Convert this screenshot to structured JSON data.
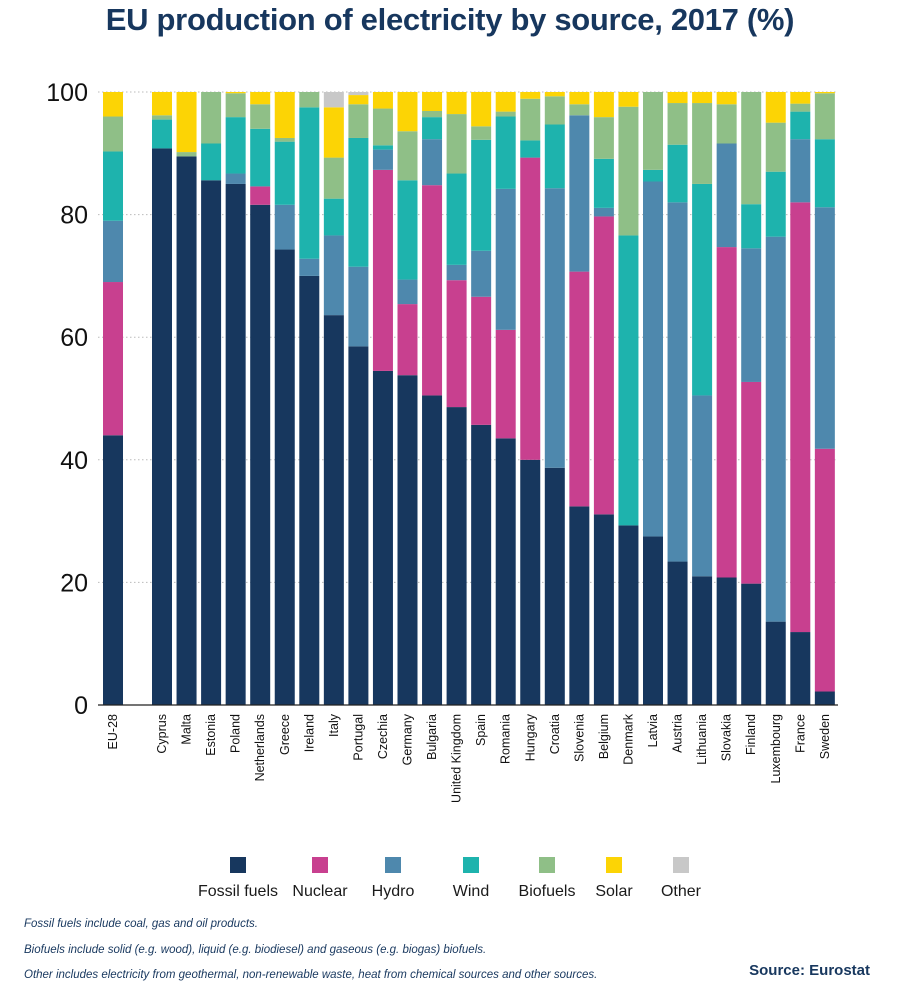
{
  "chart_data": {
    "type": "bar",
    "stacked": true,
    "title": "EU production of electricity by source, 2017 (%)",
    "ylim": [
      0,
      100
    ],
    "yticks": [
      0,
      20,
      40,
      60,
      80,
      100
    ],
    "grid": "horizontal dotted",
    "legend_position": "bottom",
    "series": [
      {
        "name": "Fossil fuels",
        "color": "#17375e"
      },
      {
        "name": "Nuclear",
        "color": "#c8408f"
      },
      {
        "name": "Hydro",
        "color": "#4e88ad"
      },
      {
        "name": "Wind",
        "color": "#1eb3ad"
      },
      {
        "name": "Biofuels",
        "color": "#8fbf87"
      },
      {
        "name": "Solar",
        "color": "#fcd405"
      },
      {
        "name": "Other",
        "color": "#c8c8c8"
      }
    ],
    "categories": [
      "EU-28",
      "Cyprus",
      "Malta",
      "Estonia",
      "Poland",
      "Netherlands",
      "Greece",
      "Ireland",
      "Italy",
      "Portugal",
      "Czechia",
      "Germany",
      "Bulgaria",
      "United Kingdom",
      "Spain",
      "Romania",
      "Hungary",
      "Croatia",
      "Slovenia",
      "Belgium",
      "Denmark",
      "Latvia",
      "Austria",
      "Lithuania",
      "Slovakia",
      "Finland",
      "Luxembourg",
      "France",
      "Sweden"
    ],
    "values": [
      [
        44.0,
        25.0,
        10.0,
        11.3,
        5.7,
        4.0,
        0.0
      ],
      [
        90.8,
        0.0,
        0.0,
        4.7,
        0.7,
        3.8,
        0.0
      ],
      [
        89.5,
        0.0,
        0.0,
        0.0,
        0.7,
        9.8,
        0.0
      ],
      [
        85.6,
        0.0,
        0.0,
        6.0,
        8.4,
        0.0,
        0.0
      ],
      [
        85.0,
        0.0,
        1.7,
        9.2,
        3.9,
        0.2,
        0.0
      ],
      [
        81.6,
        3.0,
        0.0,
        9.4,
        4.0,
        2.0,
        0.0
      ],
      [
        74.3,
        0.0,
        7.3,
        10.3,
        0.6,
        7.5,
        0.0
      ],
      [
        70.0,
        0.0,
        2.8,
        24.7,
        2.5,
        0.0,
        0.0
      ],
      [
        63.6,
        0.0,
        13.0,
        6.0,
        6.7,
        8.2,
        2.5
      ],
      [
        58.5,
        0.0,
        13.0,
        21.0,
        5.5,
        1.5,
        0.5
      ],
      [
        54.5,
        32.8,
        3.3,
        0.7,
        6.0,
        2.7,
        0.0
      ],
      [
        53.8,
        11.6,
        4.0,
        16.2,
        8.0,
        6.4,
        0.0
      ],
      [
        50.5,
        34.3,
        7.5,
        3.6,
        1.0,
        3.1,
        0.0
      ],
      [
        48.6,
        20.7,
        2.5,
        14.9,
        9.7,
        3.6,
        0.0
      ],
      [
        45.7,
        20.9,
        7.5,
        18.1,
        2.2,
        5.6,
        0.0
      ],
      [
        43.5,
        17.7,
        23.0,
        11.8,
        0.8,
        3.2,
        0.0
      ],
      [
        40.0,
        49.3,
        0.0,
        2.8,
        6.8,
        1.1,
        0.0
      ],
      [
        38.7,
        0.0,
        45.6,
        10.4,
        4.6,
        0.7,
        0.0
      ],
      [
        32.4,
        38.3,
        25.5,
        0.0,
        1.8,
        2.0,
        0.0
      ],
      [
        31.1,
        48.6,
        1.4,
        8.0,
        6.8,
        4.1,
        0.0
      ],
      [
        29.3,
        0.0,
        0.0,
        47.3,
        21.0,
        2.4,
        0.0
      ],
      [
        27.5,
        0.0,
        57.9,
        1.9,
        12.7,
        0.0,
        0.0
      ],
      [
        23.4,
        0.0,
        58.6,
        9.4,
        6.8,
        1.8,
        0.0
      ],
      [
        21.0,
        0.0,
        29.5,
        34.5,
        13.2,
        1.8,
        0.0
      ],
      [
        20.8,
        53.9,
        16.9,
        0.0,
        6.4,
        2.0,
        0.0
      ],
      [
        19.8,
        32.9,
        21.8,
        7.2,
        18.3,
        0.0,
        0.0
      ],
      [
        13.6,
        0.0,
        62.8,
        10.6,
        8.0,
        5.0,
        0.0
      ],
      [
        11.9,
        70.1,
        10.3,
        4.5,
        1.3,
        1.9,
        0.0
      ],
      [
        2.2,
        39.6,
        39.4,
        11.1,
        7.5,
        0.2,
        0.0
      ]
    ]
  },
  "notes": [
    "Fossil fuels include coal, gas and oil products.",
    "Biofuels include solid (e.g. wood), liquid (e.g. biodiesel) and gaseous (e.g. biogas) biofuels.",
    "Other includes electricity from geothermal, non-renewable waste, heat from chemical sources and other sources."
  ],
  "source": "Source: Eurostat"
}
